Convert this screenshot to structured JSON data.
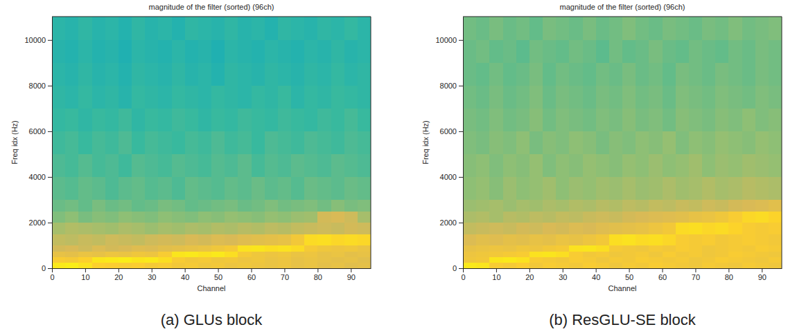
{
  "chart_data": [
    {
      "type": "heatmap",
      "title": "magnitude of the filter (sorted) (96ch)",
      "caption": "(a) GLUs block",
      "x_label": "Channel",
      "y_label": "Freq idx (Hz)",
      "xlim": [
        0,
        96
      ],
      "xticks": [
        0,
        10,
        20,
        30,
        40,
        50,
        60,
        70,
        80,
        90
      ],
      "ylim": [
        0,
        11025
      ],
      "yticks": [
        0,
        2000,
        4000,
        6000,
        8000,
        10000
      ],
      "zlim": [
        0,
        1
      ],
      "x_bins": [
        0,
        4,
        8,
        12,
        16,
        20,
        24,
        28,
        32,
        36,
        40,
        44,
        48,
        52,
        56,
        60,
        64,
        68,
        72,
        76,
        80,
        84,
        88,
        92,
        96
      ],
      "y_bins": [
        0,
        250,
        500,
        750,
        1000,
        1500,
        2000,
        2500,
        3000,
        4000,
        5000,
        6000,
        7000,
        8000,
        9000,
        10000,
        11025
      ],
      "z": [
        [
          0.95,
          0.96,
          0.93,
          0.88,
          0.87,
          0.86,
          0.87,
          0.85,
          0.86,
          0.84,
          0.85,
          0.83,
          0.84,
          0.82,
          0.83,
          0.82,
          0.81,
          0.82,
          0.8,
          0.81,
          0.79,
          0.8,
          0.78,
          0.79
        ],
        [
          0.86,
          0.85,
          0.88,
          0.94,
          0.95,
          0.96,
          0.94,
          0.95,
          0.92,
          0.86,
          0.84,
          0.85,
          0.83,
          0.84,
          0.82,
          0.83,
          0.81,
          0.82,
          0.8,
          0.81,
          0.8,
          0.79,
          0.8,
          0.78
        ],
        [
          0.8,
          0.79,
          0.81,
          0.8,
          0.82,
          0.81,
          0.83,
          0.82,
          0.86,
          0.94,
          0.95,
          0.93,
          0.95,
          0.92,
          0.85,
          0.83,
          0.82,
          0.83,
          0.81,
          0.82,
          0.8,
          0.81,
          0.79,
          0.8
        ],
        [
          0.74,
          0.75,
          0.73,
          0.76,
          0.74,
          0.75,
          0.77,
          0.76,
          0.78,
          0.79,
          0.8,
          0.81,
          0.83,
          0.85,
          0.93,
          0.94,
          0.92,
          0.93,
          0.91,
          0.85,
          0.83,
          0.82,
          0.83,
          0.81
        ],
        [
          0.71,
          0.7,
          0.72,
          0.71,
          0.73,
          0.72,
          0.71,
          0.73,
          0.74,
          0.73,
          0.75,
          0.74,
          0.76,
          0.75,
          0.77,
          0.78,
          0.79,
          0.8,
          0.84,
          0.91,
          0.92,
          0.9,
          0.91,
          0.9
        ],
        [
          0.66,
          0.68,
          0.67,
          0.66,
          0.65,
          0.67,
          0.66,
          0.64,
          0.66,
          0.65,
          0.67,
          0.66,
          0.68,
          0.67,
          0.69,
          0.68,
          0.7,
          0.69,
          0.71,
          0.72,
          0.73,
          0.72,
          0.74,
          0.73
        ],
        [
          0.6,
          0.62,
          0.59,
          0.61,
          0.6,
          0.62,
          0.61,
          0.6,
          0.62,
          0.61,
          0.6,
          0.62,
          0.61,
          0.63,
          0.62,
          0.61,
          0.63,
          0.62,
          0.64,
          0.65,
          0.74,
          0.75,
          0.73,
          0.66
        ],
        [
          0.57,
          0.58,
          0.56,
          0.59,
          0.57,
          0.58,
          0.56,
          0.57,
          0.59,
          0.58,
          0.56,
          0.57,
          0.58,
          0.59,
          0.57,
          0.58,
          0.6,
          0.58,
          0.59,
          0.6,
          0.58,
          0.61,
          0.59,
          0.6
        ],
        [
          0.55,
          0.54,
          0.56,
          0.55,
          0.53,
          0.55,
          0.56,
          0.54,
          0.55,
          0.53,
          0.56,
          0.55,
          0.54,
          0.56,
          0.55,
          0.57,
          0.55,
          0.56,
          0.54,
          0.57,
          0.56,
          0.55,
          0.57,
          0.56
        ],
        [
          0.53,
          0.52,
          0.54,
          0.52,
          0.53,
          0.51,
          0.54,
          0.53,
          0.52,
          0.54,
          0.53,
          0.52,
          0.54,
          0.53,
          0.55,
          0.52,
          0.54,
          0.53,
          0.55,
          0.54,
          0.53,
          0.55,
          0.54,
          0.53
        ],
        [
          0.51,
          0.52,
          0.5,
          0.52,
          0.51,
          0.53,
          0.5,
          0.52,
          0.51,
          0.5,
          0.52,
          0.51,
          0.53,
          0.51,
          0.52,
          0.5,
          0.53,
          0.52,
          0.51,
          0.53,
          0.52,
          0.51,
          0.53,
          0.52
        ],
        [
          0.49,
          0.5,
          0.48,
          0.5,
          0.49,
          0.51,
          0.48,
          0.5,
          0.49,
          0.51,
          0.5,
          0.48,
          0.5,
          0.49,
          0.51,
          0.5,
          0.49,
          0.51,
          0.5,
          0.49,
          0.51,
          0.5,
          0.52,
          0.5
        ],
        [
          0.48,
          0.47,
          0.49,
          0.47,
          0.48,
          0.46,
          0.49,
          0.48,
          0.47,
          0.49,
          0.48,
          0.47,
          0.49,
          0.48,
          0.47,
          0.49,
          0.48,
          0.5,
          0.47,
          0.49,
          0.48,
          0.5,
          0.49,
          0.48
        ],
        [
          0.47,
          0.46,
          0.48,
          0.46,
          0.47,
          0.45,
          0.48,
          0.47,
          0.46,
          0.48,
          0.46,
          0.47,
          0.45,
          0.48,
          0.47,
          0.46,
          0.48,
          0.47,
          0.46,
          0.48,
          0.47,
          0.49,
          0.47,
          0.48
        ],
        [
          0.46,
          0.45,
          0.47,
          0.45,
          0.46,
          0.44,
          0.47,
          0.46,
          0.45,
          0.47,
          0.45,
          0.46,
          0.44,
          0.47,
          0.46,
          0.45,
          0.47,
          0.46,
          0.45,
          0.47,
          0.46,
          0.48,
          0.46,
          0.47
        ],
        [
          0.47,
          0.46,
          0.48,
          0.46,
          0.47,
          0.45,
          0.48,
          0.46,
          0.47,
          0.45,
          0.48,
          0.47,
          0.46,
          0.48,
          0.46,
          0.47,
          0.45,
          0.48,
          0.47,
          0.46,
          0.48,
          0.47,
          0.49,
          0.47
        ]
      ]
    },
    {
      "type": "heatmap",
      "title": "magnitude of the filter (sorted) (96ch)",
      "caption": "(b) ResGLU-SE block",
      "x_label": "Channel",
      "y_label": "Freq idx (Hz)",
      "xlim": [
        0,
        96
      ],
      "xticks": [
        0,
        10,
        20,
        30,
        40,
        50,
        60,
        70,
        80,
        90
      ],
      "ylim": [
        0,
        11025
      ],
      "yticks": [
        0,
        2000,
        4000,
        6000,
        8000,
        10000
      ],
      "zlim": [
        0,
        1
      ],
      "x_bins": [
        0,
        4,
        8,
        12,
        16,
        20,
        24,
        28,
        32,
        36,
        40,
        44,
        48,
        52,
        56,
        60,
        64,
        68,
        72,
        76,
        80,
        84,
        88,
        92,
        96
      ],
      "y_bins": [
        0,
        250,
        500,
        750,
        1000,
        1500,
        2000,
        2500,
        3000,
        4000,
        5000,
        6000,
        7000,
        8000,
        9000,
        10000,
        11025
      ],
      "z": [
        [
          0.95,
          0.94,
          0.86,
          0.85,
          0.87,
          0.84,
          0.86,
          0.85,
          0.84,
          0.86,
          0.85,
          0.83,
          0.85,
          0.84,
          0.86,
          0.85,
          0.84,
          0.83,
          0.85,
          0.84,
          0.83,
          0.85,
          0.84,
          0.83
        ],
        [
          0.83,
          0.84,
          0.94,
          0.95,
          0.93,
          0.86,
          0.85,
          0.84,
          0.86,
          0.85,
          0.83,
          0.85,
          0.84,
          0.86,
          0.85,
          0.84,
          0.85,
          0.83,
          0.84,
          0.86,
          0.85,
          0.84,
          0.83,
          0.85
        ],
        [
          0.82,
          0.83,
          0.84,
          0.85,
          0.86,
          0.93,
          0.94,
          0.92,
          0.86,
          0.84,
          0.85,
          0.83,
          0.84,
          0.85,
          0.83,
          0.86,
          0.84,
          0.85,
          0.83,
          0.84,
          0.86,
          0.85,
          0.84,
          0.83
        ],
        [
          0.8,
          0.81,
          0.82,
          0.81,
          0.83,
          0.82,
          0.84,
          0.85,
          0.93,
          0.94,
          0.92,
          0.85,
          0.84,
          0.83,
          0.85,
          0.84,
          0.86,
          0.85,
          0.83,
          0.84,
          0.85,
          0.84,
          0.86,
          0.85
        ],
        [
          0.76,
          0.78,
          0.77,
          0.79,
          0.78,
          0.8,
          0.79,
          0.81,
          0.8,
          0.82,
          0.84,
          0.92,
          0.93,
          0.91,
          0.92,
          0.9,
          0.86,
          0.85,
          0.86,
          0.84,
          0.85,
          0.86,
          0.85,
          0.84
        ],
        [
          0.71,
          0.72,
          0.73,
          0.72,
          0.74,
          0.73,
          0.75,
          0.74,
          0.76,
          0.75,
          0.77,
          0.78,
          0.79,
          0.8,
          0.82,
          0.84,
          0.91,
          0.92,
          0.9,
          0.91,
          0.89,
          0.86,
          0.85,
          0.86
        ],
        [
          0.67,
          0.68,
          0.66,
          0.69,
          0.68,
          0.7,
          0.69,
          0.71,
          0.7,
          0.72,
          0.73,
          0.72,
          0.74,
          0.75,
          0.76,
          0.77,
          0.78,
          0.8,
          0.81,
          0.83,
          0.86,
          0.9,
          0.91,
          0.89
        ],
        [
          0.64,
          0.65,
          0.66,
          0.64,
          0.66,
          0.65,
          0.67,
          0.66,
          0.68,
          0.67,
          0.69,
          0.68,
          0.7,
          0.69,
          0.71,
          0.7,
          0.72,
          0.71,
          0.73,
          0.72,
          0.74,
          0.75,
          0.76,
          0.78
        ],
        [
          0.62,
          0.63,
          0.61,
          0.64,
          0.62,
          0.63,
          0.65,
          0.62,
          0.64,
          0.63,
          0.65,
          0.64,
          0.66,
          0.64,
          0.65,
          0.67,
          0.65,
          0.66,
          0.68,
          0.66,
          0.67,
          0.69,
          0.68,
          0.67
        ],
        [
          0.61,
          0.62,
          0.6,
          0.62,
          0.61,
          0.63,
          0.6,
          0.62,
          0.61,
          0.63,
          0.62,
          0.61,
          0.63,
          0.62,
          0.64,
          0.62,
          0.63,
          0.65,
          0.62,
          0.64,
          0.63,
          0.65,
          0.64,
          0.63
        ],
        [
          0.6,
          0.59,
          0.61,
          0.6,
          0.62,
          0.59,
          0.61,
          0.6,
          0.62,
          0.61,
          0.59,
          0.61,
          0.6,
          0.62,
          0.61,
          0.63,
          0.6,
          0.62,
          0.61,
          0.63,
          0.62,
          0.61,
          0.63,
          0.62
        ],
        [
          0.59,
          0.58,
          0.6,
          0.58,
          0.59,
          0.61,
          0.58,
          0.6,
          0.59,
          0.58,
          0.6,
          0.59,
          0.61,
          0.59,
          0.6,
          0.58,
          0.61,
          0.6,
          0.59,
          0.61,
          0.6,
          0.62,
          0.6,
          0.61
        ],
        [
          0.58,
          0.57,
          0.59,
          0.57,
          0.58,
          0.6,
          0.57,
          0.59,
          0.58,
          0.57,
          0.59,
          0.58,
          0.6,
          0.58,
          0.59,
          0.57,
          0.6,
          0.59,
          0.58,
          0.6,
          0.59,
          0.58,
          0.6,
          0.59
        ],
        [
          0.57,
          0.56,
          0.58,
          0.56,
          0.57,
          0.59,
          0.56,
          0.58,
          0.57,
          0.56,
          0.58,
          0.57,
          0.59,
          0.57,
          0.58,
          0.56,
          0.59,
          0.58,
          0.57,
          0.59,
          0.58,
          0.57,
          0.59,
          0.58
        ],
        [
          0.57,
          0.58,
          0.56,
          0.57,
          0.55,
          0.58,
          0.57,
          0.56,
          0.58,
          0.57,
          0.55,
          0.58,
          0.56,
          0.57,
          0.59,
          0.57,
          0.56,
          0.58,
          0.57,
          0.56,
          0.58,
          0.57,
          0.59,
          0.58
        ],
        [
          0.58,
          0.57,
          0.59,
          0.57,
          0.58,
          0.56,
          0.59,
          0.58,
          0.57,
          0.59,
          0.57,
          0.58,
          0.6,
          0.58,
          0.57,
          0.59,
          0.58,
          0.57,
          0.59,
          0.58,
          0.6,
          0.58,
          0.59,
          0.6
        ]
      ]
    }
  ]
}
